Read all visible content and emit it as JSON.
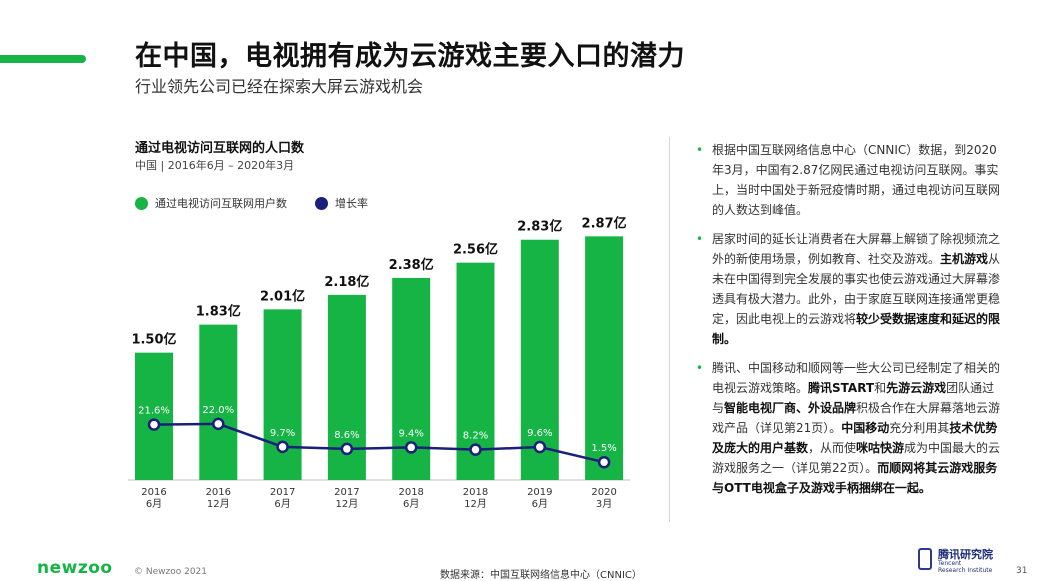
{
  "header": {
    "title": "在中国，电视拥有成为云游戏主要入口的潜力",
    "subtitle": "行业领先公司已经在探索大屏云游戏机会"
  },
  "chart_data": {
    "type": "bar",
    "title": "通过电视访问互联网的人口数",
    "subtitle": "中国 | 2016年6月 – 2020年3月",
    "categories": [
      [
        "2016",
        "6月"
      ],
      [
        "2016",
        "12月"
      ],
      [
        "2017",
        "6月"
      ],
      [
        "2017",
        "12月"
      ],
      [
        "2018",
        "6月"
      ],
      [
        "2018",
        "12月"
      ],
      [
        "2019",
        "6月"
      ],
      [
        "2020",
        "3月"
      ]
    ],
    "series": [
      {
        "name": "通过电视访问互联网用户数",
        "kind": "bar",
        "color": "#16b445",
        "values": [
          1.5,
          1.83,
          2.01,
          2.18,
          2.38,
          2.56,
          2.83,
          2.87
        ],
        "labels": [
          "1.50亿",
          "1.83亿",
          "2.01亿",
          "2.18亿",
          "2.38亿",
          "2.56亿",
          "2.83亿",
          "2.87亿"
        ]
      },
      {
        "name": "增长率",
        "kind": "line",
        "color": "#1a1f7a",
        "values": [
          21.6,
          22.0,
          9.7,
          8.6,
          9.4,
          8.2,
          9.6,
          1.5
        ],
        "labels": [
          "21.6%",
          "22.0%",
          "9.7%",
          "8.6%",
          "9.4%",
          "8.2%",
          "9.6%",
          "1.5%"
        ]
      }
    ],
    "legend": "top-left",
    "grid": false
  },
  "bullets": [
    [
      {
        "t": "根据中国互联网络信息中心（CNNIC）数据，到2020年3月，中国有2.87亿网民通过电视访问互联网。事实上，当时中国处于新冠疫情时期，通过电视访问互联网的人数达到峰值。",
        "b": false
      }
    ],
    [
      {
        "t": "居家时间的延长让消费者在大屏幕上解锁了除视频流之外的新使用场景，例如教育、社交及游戏。",
        "b": false
      },
      {
        "t": "主机游戏",
        "b": true
      },
      {
        "t": "从未在中国得到完全发展的事实也使云游戏通过大屏幕渗透具有极大潜力。此外，由于家庭互联网连接通常更稳定，因此电视上的云游戏将",
        "b": false
      },
      {
        "t": "较少受数据速度和延迟的限制。",
        "b": true
      }
    ],
    [
      {
        "t": "腾讯、中国移动和顺网等一些大公司已经制定了相关的电视云游戏策略。",
        "b": false
      },
      {
        "t": "腾讯START",
        "b": true
      },
      {
        "t": "和",
        "b": false
      },
      {
        "t": "先游云游戏",
        "b": true
      },
      {
        "t": "团队通过与",
        "b": false
      },
      {
        "t": "智能电视厂商、外设品牌",
        "b": true
      },
      {
        "t": "积极合作在大屏幕落地云游戏产品（详见第21页）。",
        "b": false
      },
      {
        "t": "中国移动",
        "b": true
      },
      {
        "t": "充分利用其",
        "b": false
      },
      {
        "t": "技术优势及庞大的用户基数",
        "b": true
      },
      {
        "t": "，从而使",
        "b": false
      },
      {
        "t": "咪咕快游",
        "b": true
      },
      {
        "t": "成为中国最大的云游戏服务之一（详见第22页）。",
        "b": false
      },
      {
        "t": "而顺网将其云游戏服务与OTT电视盒子及游戏手柄捆绑在一起。",
        "b": true
      }
    ]
  ],
  "footer": {
    "logo": "newzoo",
    "copyright": "© Newzoo 2021",
    "source": "数据来源：中国互联网络信息中心（CNNIC）",
    "partner_name": "腾讯研究院",
    "partner_en_1": "Tencent",
    "partner_en_2": "Research Institute",
    "page": "31"
  }
}
